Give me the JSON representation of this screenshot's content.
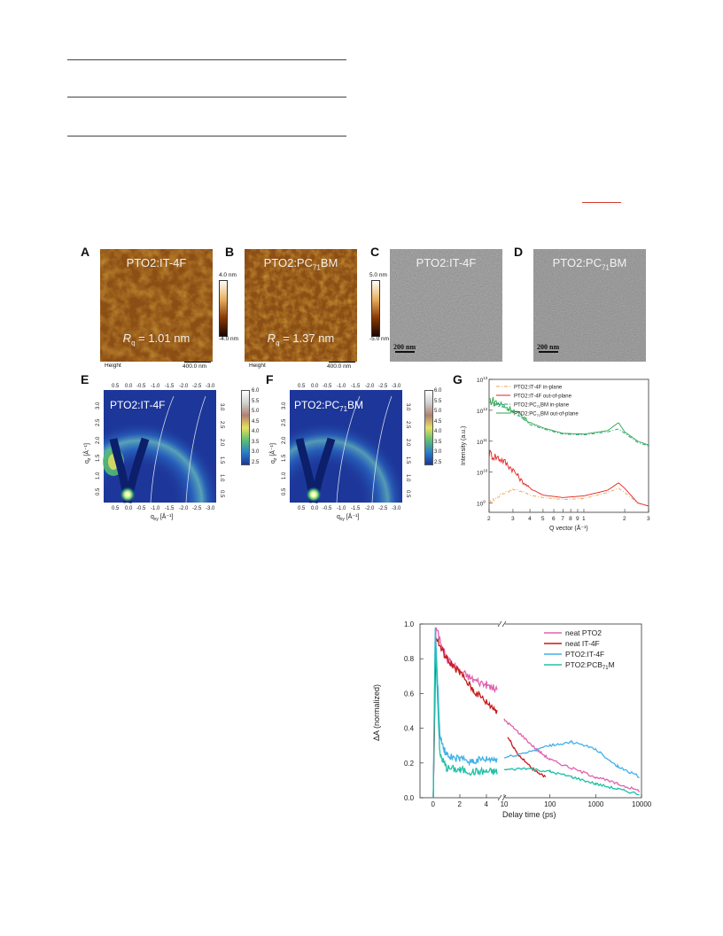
{
  "panels": {
    "A": {
      "letter": "A",
      "title": "PTO2:IT-4F",
      "rq_label": "R",
      "rq_sub": "q",
      "rq_value": " = 1.01 nm",
      "footer_left": "Height",
      "scalebar": "400.0 nm"
    },
    "B": {
      "letter": "B",
      "title_main": "PTO2:PC",
      "title_sub": "71",
      "title_end": "BM",
      "rq_label": "R",
      "rq_sub": "q",
      "rq_value": " = 1.37 nm",
      "footer_left": "Height",
      "scalebar": "400.0 nm",
      "colorbar_top": "4.0 nm",
      "colorbar_bottom": "-4.0 nm"
    },
    "C": {
      "letter": "C",
      "title": "PTO2:IT-4F",
      "scalebar": "200 nm",
      "colorbar_top": "5.0 nm",
      "colorbar_bottom": "-5.0 nm"
    },
    "D": {
      "letter": "D",
      "title_main": "PTO2:PC",
      "title_sub": "71",
      "title_end": "BM",
      "scalebar": "200 nm"
    },
    "E": {
      "letter": "E",
      "title": "PTO2:IT-4F",
      "xlabel_main": "q",
      "xlabel_sub": "xy",
      "xlabel_unit": " [Å⁻¹]",
      "ylabel_main": "q",
      "ylabel_sub": "z",
      "ylabel_unit": " [Å⁻¹]"
    },
    "F": {
      "letter": "F",
      "title_main": "PTO2:PC",
      "title_sub": "71",
      "title_end": "BM",
      "xlabel_main": "q",
      "xlabel_sub": "xy",
      "xlabel_unit": " [Å⁻¹]",
      "ylabel_main": "q",
      "ylabel_sub": "z",
      "ylabel_unit": " [Å⁻¹]"
    },
    "G": {
      "letter": "G"
    }
  },
  "giwaxs_top_ticks": [
    "0.5",
    "0.0",
    "-0.5",
    "-1.0",
    "-1.5",
    "-2.0",
    "-2.5",
    "-3.0"
  ],
  "giwaxs_bottom_ticks": [
    "0.5",
    "0.0",
    "-0.5",
    "-1.0",
    "-1.5",
    "-2.0",
    "-2.5",
    "-3.0"
  ],
  "giwaxs_left_ticks": [
    "3.0",
    "2.5",
    "2.0",
    "1.5",
    "1.0",
    "0.5"
  ],
  "giwaxs_right_ticks": [
    "3.0",
    "2.5",
    "2.0",
    "1.5",
    "1.0",
    "0.5"
  ],
  "giwaxs_colorbar_ticks": [
    "6.0",
    "5.5",
    "5.0",
    "4.5",
    "4.0",
    "3.5",
    "3.0",
    "2.5"
  ],
  "chart_data": [
    {
      "type": "line",
      "panel": "G",
      "xlabel": "Q vector (Å⁻¹)",
      "ylabel": "Intensity (a.u.)",
      "xscale": "log",
      "yscale": "log",
      "xlim": [
        0.2,
        3
      ],
      "ylim": [
        500000000.0,
        10000000000000.0
      ],
      "x_ticks": [
        "2",
        "3",
        "4",
        "5",
        "6",
        "7",
        "8",
        "9",
        "1",
        "2",
        "3"
      ],
      "y_ticks": [
        "10^13",
        "10^12",
        "10^11",
        "10^10",
        "10^9"
      ],
      "series": [
        {
          "name": "PTO2:IT-4F in-plane",
          "color": "#f0a050",
          "dash": "dashdot",
          "x": [
            0.2,
            0.25,
            0.3,
            0.35,
            0.4,
            0.5,
            0.7,
            1.0,
            1.5,
            1.8,
            2.0,
            2.5,
            3.0
          ],
          "y": [
            1000000000.0,
            2000000000.0,
            2800000000.0,
            2400000000.0,
            1800000000.0,
            1500000000.0,
            1300000000.0,
            1400000000.0,
            2200000000.0,
            3000000000.0,
            2200000000.0,
            1000000000.0,
            800000000.0
          ]
        },
        {
          "name": "PTO2:IT-4F out-of-plane",
          "color": "#e42020",
          "dash": "solid",
          "x": [
            0.2,
            0.25,
            0.3,
            0.35,
            0.4,
            0.5,
            0.7,
            1.0,
            1.5,
            1.8,
            2.0,
            2.5,
            3.0
          ],
          "y": [
            40000000000.0,
            25000000000.0,
            12000000000.0,
            5000000000.0,
            3000000000.0,
            1800000000.0,
            1500000000.0,
            1700000000.0,
            2600000000.0,
            4500000000.0,
            3000000000.0,
            1000000000.0,
            800000000.0
          ]
        },
        {
          "name": "PTO2:PC71BM in-plane",
          "color": "#1f9e76",
          "dash": "dashdot",
          "x": [
            0.2,
            0.25,
            0.3,
            0.35,
            0.4,
            0.5,
            0.7,
            1.0,
            1.5,
            1.8,
            2.0,
            2.5,
            3.0
          ],
          "y": [
            1800000000000.0,
            1300000000000.0,
            900000000000.0,
            550000000000.0,
            350000000000.0,
            250000000000.0,
            170000000000.0,
            160000000000.0,
            200000000000.0,
            250000000000.0,
            180000000000.0,
            90000000000.0,
            70000000000.0
          ]
        },
        {
          "name": "PTO2:PC71BM out-of-plane",
          "color": "#2aa54a",
          "dash": "solid",
          "x": [
            0.2,
            0.25,
            0.3,
            0.35,
            0.4,
            0.5,
            0.7,
            1.0,
            1.5,
            1.8,
            2.0,
            2.5,
            3.0
          ],
          "y": [
            2200000000000.0,
            1500000000000.0,
            1000000000000.0,
            650000000000.0,
            400000000000.0,
            270000000000.0,
            180000000000.0,
            170000000000.0,
            220000000000.0,
            400000000000.0,
            200000000000.0,
            100000000000.0,
            75000000000.0
          ]
        }
      ],
      "legend": [
        {
          "main": "PTO2:IT-4F in-plane",
          "color": "#f0a050",
          "dash": "4,2,1,2"
        },
        {
          "main": "PTO2:IT-4F out-of-plane",
          "color": "#e42020",
          "dash": ""
        },
        {
          "main": "PTO2:PC",
          "sub": "71",
          "end": "BM in-plane",
          "color": "#1f9e76",
          "dash": "4,2,1,2"
        },
        {
          "main": "PTO2:PC",
          "sub": "71",
          "end": "BM out-of-plane",
          "color": "#2aa54a",
          "dash": ""
        }
      ]
    },
    {
      "type": "line",
      "panel": "kinetics",
      "xlabel": "Delay time (ps)",
      "ylabel": "ΔA (normalized)",
      "xaxis": "broken: linear -1..5 then log 10..10000",
      "ylim": [
        0,
        1.0
      ],
      "linear_ticks": [
        "0",
        "2",
        "4"
      ],
      "log_ticks": [
        "10",
        "100",
        "1000",
        "10000"
      ],
      "y_ticks": [
        "0.0",
        "0.2",
        "0.4",
        "0.6",
        "0.8",
        "1.0"
      ],
      "series": [
        {
          "name": "neat PTO2",
          "color": "#e060b0",
          "x": [
            0.0,
            0.2,
            1,
            2,
            3,
            4,
            4.8,
            10,
            20,
            50,
            100,
            300,
            1000,
            3000,
            9000
          ],
          "y": [
            0.0,
            0.98,
            0.8,
            0.73,
            0.68,
            0.65,
            0.62,
            0.45,
            0.38,
            0.28,
            0.22,
            0.17,
            0.12,
            0.08,
            0.04
          ]
        },
        {
          "name": "neat IT-4F",
          "color": "#c81818",
          "x": [
            0.0,
            0.2,
            1,
            2,
            3,
            4,
            4.8,
            12,
            20,
            40,
            80
          ],
          "y": [
            0.0,
            0.92,
            0.8,
            0.72,
            0.62,
            0.55,
            0.5,
            0.35,
            0.25,
            0.17,
            0.12
          ]
        },
        {
          "name": "PTO2:IT-4F",
          "color": "#40b0e8",
          "x": [
            0.0,
            0.15,
            0.5,
            1,
            2,
            3,
            4,
            4.8,
            10,
            30,
            100,
            300,
            1000,
            3000,
            9000
          ],
          "y": [
            0.0,
            0.98,
            0.35,
            0.24,
            0.22,
            0.21,
            0.22,
            0.22,
            0.23,
            0.26,
            0.3,
            0.32,
            0.28,
            0.18,
            0.12
          ]
        },
        {
          "name": "PTO2:PCB71M",
          "color": "#20c0a8",
          "x": [
            0.0,
            0.15,
            0.5,
            1,
            2,
            3,
            4,
            4.8,
            10,
            30,
            100,
            300,
            1000,
            3000,
            9000
          ],
          "y": [
            0.0,
            0.9,
            0.25,
            0.17,
            0.16,
            0.15,
            0.15,
            0.15,
            0.16,
            0.17,
            0.15,
            0.12,
            0.08,
            0.05,
            0.02
          ]
        }
      ],
      "legend": [
        {
          "main": "neat PTO2",
          "color": "#e060b0"
        },
        {
          "main": "neat IT-4F",
          "color": "#c81818"
        },
        {
          "main": "PTO2:IT-4F",
          "color": "#40b0e8"
        },
        {
          "main": "PTO2:PCB",
          "sub": "71",
          "end": "M",
          "color": "#20c0a8"
        }
      ]
    }
  ]
}
